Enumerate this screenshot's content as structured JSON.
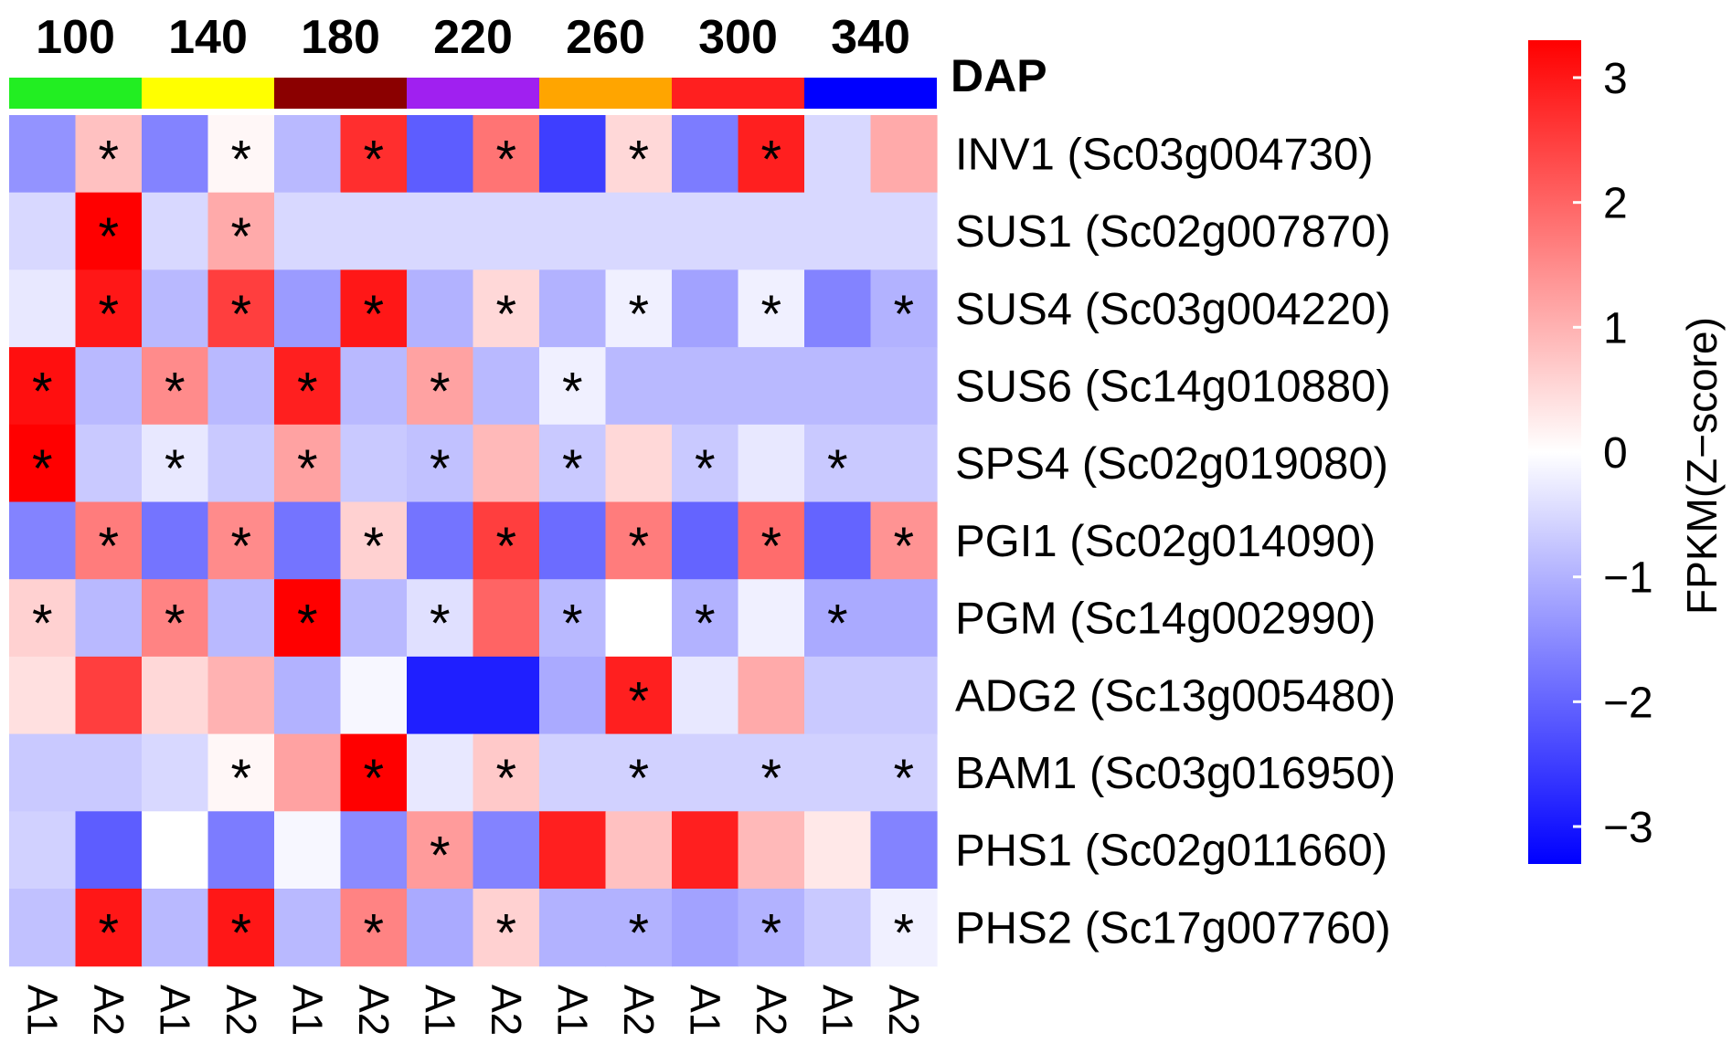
{
  "chart_data": {
    "type": "heatmap",
    "group_title": "DAP",
    "groups": [
      {
        "label": "100",
        "color": "#22ee22"
      },
      {
        "label": "140",
        "color": "#ffff00"
      },
      {
        "label": "180",
        "color": "#8b0000"
      },
      {
        "label": "220",
        "color": "#a020f0"
      },
      {
        "label": "260",
        "color": "#ffa500"
      },
      {
        "label": "300",
        "color": "#ff1f1f"
      },
      {
        "label": "340",
        "color": "#0000ff"
      }
    ],
    "columns": [
      "A1",
      "A2",
      "A1",
      "A2",
      "A1",
      "A2",
      "A1",
      "A2",
      "A1",
      "A2",
      "A1",
      "A2",
      "A1",
      "A2"
    ],
    "rows": [
      "INV1 (Sc03g004730)",
      "SUS1 (Sc02g007870)",
      "SUS4 (Sc03g004220)",
      "SUS6 (Sc14g010880)",
      "SPS4 (Sc02g019080)",
      "PGI1 (Sc02g014090)",
      "PGM (Sc14g002990)",
      "ADG2 (Sc13g005480)",
      "BAM1 (Sc03g016950)",
      "PHS1 (Sc02g011660)",
      "PHS2 (Sc17g007760)"
    ],
    "values": [
      [
        -1.4,
        0.8,
        -1.6,
        0.1,
        -0.9,
        2.7,
        -2.1,
        1.8,
        -2.5,
        0.5,
        -1.7,
        2.9,
        -0.5,
        1.1
      ],
      [
        -0.5,
        3.3,
        -0.5,
        1.1,
        -0.5,
        -0.5,
        -0.5,
        -0.5,
        -0.5,
        -0.5,
        -0.5,
        -0.5,
        -0.5,
        -0.5
      ],
      [
        -0.3,
        3.0,
        -0.9,
        2.5,
        -1.3,
        3.0,
        -1.0,
        0.5,
        -1.0,
        -0.2,
        -1.2,
        -0.2,
        -1.6,
        -1.0
      ],
      [
        3.1,
        -0.9,
        1.5,
        -0.9,
        2.9,
        -0.9,
        1.2,
        -0.9,
        -0.2,
        -0.9,
        -0.9,
        -0.9,
        -0.9,
        -0.9
      ],
      [
        3.3,
        -0.7,
        -0.3,
        -0.7,
        1.2,
        -0.7,
        -0.8,
        0.9,
        -0.7,
        0.5,
        -0.7,
        -0.3,
        -0.7,
        -0.7
      ],
      [
        -1.6,
        1.7,
        -1.8,
        1.5,
        -1.8,
        0.6,
        -1.8,
        2.5,
        -1.9,
        1.7,
        -2.0,
        1.9,
        -2.0,
        1.4
      ],
      [
        0.6,
        -0.9,
        1.6,
        -0.9,
        3.3,
        -0.9,
        -0.4,
        2.0,
        -0.9,
        0.0,
        -1.0,
        -0.2,
        -1.1,
        -1.1
      ],
      [
        0.4,
        2.5,
        0.5,
        1.0,
        -1.0,
        -0.1,
        -2.9,
        -2.9,
        -1.1,
        2.9,
        -0.3,
        1.1,
        -0.7,
        -0.7
      ],
      [
        -0.7,
        -0.7,
        -0.5,
        0.1,
        1.2,
        3.3,
        -0.3,
        0.7,
        -0.6,
        -0.6,
        -0.6,
        -0.6,
        -0.6,
        -0.6
      ],
      [
        -0.6,
        -2.1,
        0.0,
        -1.7,
        -0.1,
        -1.5,
        1.3,
        -1.6,
        2.9,
        0.8,
        2.9,
        0.9,
        0.3,
        -1.6
      ],
      [
        -0.8,
        3.0,
        -0.9,
        3.0,
        -0.9,
        1.6,
        -1.1,
        0.6,
        -1.0,
        -1.0,
        -1.2,
        -1.0,
        -0.7,
        -0.2
      ]
    ],
    "significant": [
      [
        0,
        1,
        0,
        1,
        0,
        1,
        0,
        1,
        0,
        1,
        0,
        1,
        0,
        0
      ],
      [
        0,
        1,
        0,
        1,
        0,
        0,
        0,
        0,
        0,
        0,
        0,
        0,
        0,
        0
      ],
      [
        0,
        1,
        0,
        1,
        0,
        1,
        0,
        1,
        0,
        1,
        0,
        1,
        0,
        1
      ],
      [
        1,
        0,
        1,
        0,
        1,
        0,
        1,
        0,
        1,
        0,
        0,
        0,
        0,
        0
      ],
      [
        1,
        0,
        1,
        0,
        1,
        0,
        1,
        0,
        1,
        0,
        1,
        0,
        1,
        0
      ],
      [
        0,
        1,
        0,
        1,
        0,
        1,
        0,
        1,
        0,
        1,
        0,
        1,
        0,
        1
      ],
      [
        1,
        0,
        1,
        0,
        1,
        0,
        1,
        0,
        1,
        0,
        1,
        0,
        1,
        0
      ],
      [
        0,
        0,
        0,
        0,
        0,
        0,
        0,
        0,
        0,
        1,
        0,
        0,
        0,
        0
      ],
      [
        0,
        0,
        0,
        1,
        0,
        1,
        0,
        1,
        0,
        1,
        0,
        1,
        0,
        1
      ],
      [
        0,
        0,
        0,
        0,
        0,
        0,
        1,
        0,
        0,
        0,
        0,
        0,
        0,
        0
      ],
      [
        0,
        1,
        0,
        1,
        0,
        1,
        0,
        1,
        0,
        1,
        0,
        1,
        0,
        1
      ]
    ],
    "significance_mark": "*",
    "colorbar": {
      "title": "FPKM(Z−score)",
      "min": -3.3,
      "max": 3.3,
      "ticks": [
        3,
        2,
        1,
        0,
        -1,
        -2,
        -3
      ],
      "tick_labels": [
        "3",
        "2",
        "1",
        "0",
        "−1",
        "−2",
        "−3"
      ],
      "colors": {
        "low": "#0000ff",
        "mid": "#ffffff",
        "high": "#ff0000"
      }
    }
  }
}
